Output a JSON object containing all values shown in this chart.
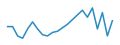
{
  "values": [
    2.0,
    2.0,
    1.2,
    1.0,
    1.8,
    2.4,
    1.8,
    1.3,
    1.2,
    1.5,
    1.6,
    1.9,
    2.2,
    2.6,
    3.0,
    3.4,
    2.8,
    3.6,
    1.8,
    3.2,
    1.2,
    2.5
  ],
  "line_color": "#2b8cc4",
  "linewidth": 1.1,
  "background_color": "#ffffff",
  "ylim_min": 0.5,
  "ylim_max": 4.2
}
